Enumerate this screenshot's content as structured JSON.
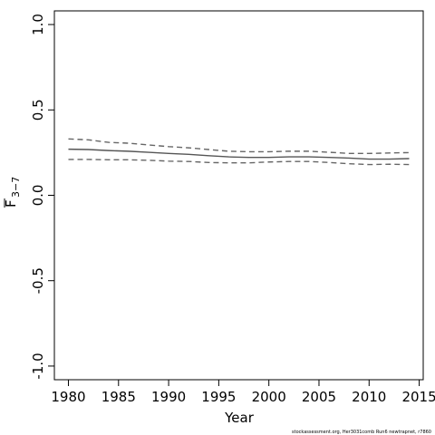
{
  "chart_data": {
    "type": "line",
    "ylabel": "F",
    "ylabel_subscript": "3−7",
    "xlabel": "Year",
    "footnote": "stockassessment.org, Her3031comb Run6 newtrapnet, r7860",
    "x": [
      1980,
      1982,
      1984,
      1986,
      1988,
      1990,
      1992,
      1994,
      1996,
      1998,
      2000,
      2002,
      2004,
      2006,
      2008,
      2010,
      2012,
      2014
    ],
    "series": [
      {
        "color": "#555555",
        "dash": false,
        "values": [
          0.27,
          0.268,
          0.262,
          0.258,
          0.252,
          0.245,
          0.24,
          0.232,
          0.225,
          0.222,
          0.222,
          0.225,
          0.225,
          0.222,
          0.218,
          0.212,
          0.212,
          0.215
        ]
      },
      {
        "color": "#666666",
        "dash": true,
        "values": [
          0.33,
          0.325,
          0.31,
          0.305,
          0.295,
          0.285,
          0.278,
          0.268,
          0.258,
          0.255,
          0.255,
          0.258,
          0.258,
          0.252,
          0.245,
          0.245,
          0.248,
          0.25
        ]
      },
      {
        "color": "#666666",
        "dash": true,
        "values": [
          0.21,
          0.21,
          0.208,
          0.208,
          0.205,
          0.2,
          0.198,
          0.192,
          0.19,
          0.19,
          0.195,
          0.198,
          0.198,
          0.192,
          0.185,
          0.18,
          0.182,
          0.18
        ]
      }
    ],
    "xlim": [
      1978.6,
      2015.4
    ],
    "ylim": [
      -1.08,
      1.08
    ],
    "xticks": [
      1980,
      1985,
      1990,
      1995,
      2000,
      2005,
      2010,
      2015
    ],
    "yticks": [
      {
        "value": -1,
        "label": "-1.0"
      },
      -0.5,
      {
        "value": 0,
        "label": "0.0"
      },
      0.5,
      {
        "value": 1,
        "label": "1.0"
      }
    ]
  }
}
